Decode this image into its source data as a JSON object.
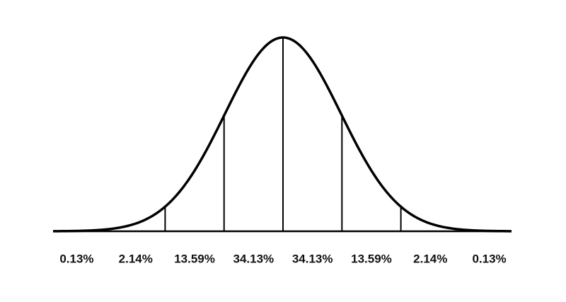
{
  "regions": [
    {
      "label": "0.13%"
    },
    {
      "label": "2.14%"
    },
    {
      "label": "13.59%"
    },
    {
      "label": "34.13%"
    },
    {
      "label": "34.13%"
    },
    {
      "label": "13.59%"
    },
    {
      "label": "2.14%"
    },
    {
      "label": "0.13%"
    }
  ]
}
